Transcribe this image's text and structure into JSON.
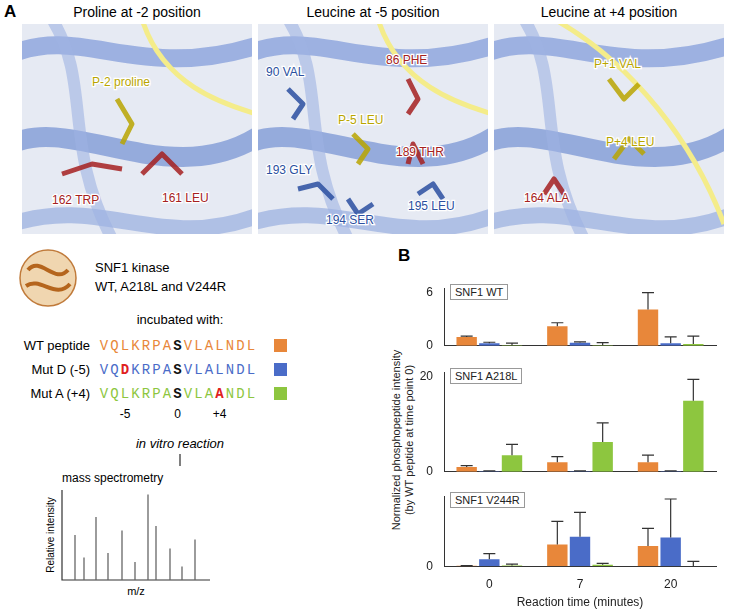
{
  "panel_a": {
    "label": "A",
    "structures": [
      {
        "title": "Proline at -2 position",
        "labels": [
          {
            "text": "P-2 proline",
            "color": "#b8a500"
          },
          {
            "text": "162 TRP",
            "color": "#a52020"
          },
          {
            "text": "161 LEU",
            "color": "#a52020"
          }
        ]
      },
      {
        "title": "Leucine at -5 position",
        "labels": [
          {
            "text": "90 VAL",
            "color": "#2a4fa0"
          },
          {
            "text": "86 PHE",
            "color": "#a52020"
          },
          {
            "text": "P-5 LEU",
            "color": "#b8a500"
          },
          {
            "text": "189 THR",
            "color": "#a52020"
          },
          {
            "text": "193 GLY",
            "color": "#2a4fa0"
          },
          {
            "text": "194 SER",
            "color": "#2a4fa0"
          },
          {
            "text": "195 LEU",
            "color": "#2a4fa0"
          }
        ]
      },
      {
        "title": "Leucine at +4 position",
        "labels": [
          {
            "text": "P+1 VAL",
            "color": "#b8a500"
          },
          {
            "text": "P+4 LEU",
            "color": "#b8a500"
          },
          {
            "text": "164 ALA",
            "color": "#a52020"
          }
        ]
      }
    ],
    "kinase": {
      "name": "SNF1 kinase",
      "variants": "WT, A218L and V244R"
    },
    "incubation": "incubated with:",
    "peptides": [
      {
        "sequence": "VQLKRPASVLALNDL",
        "phospho_site": 7
      },
      {
        "sequence": "VQDKRPASVLALNDL",
        "phospho_site": 7,
        "mutation": 2
      },
      {
        "sequence": "VQLKRPASVLAANDL",
        "phospho_site": 7,
        "mutation": 11
      }
    ],
    "positions": [
      {
        "label": "-5",
        "residue": 2
      },
      {
        "label": "0",
        "residue": 7
      },
      {
        "label": "+4",
        "residue": 11
      }
    ],
    "reaction": "in vitro reaction",
    "method": "mass spectrometry",
    "spectrum": {
      "ylabel": "Relative intensity",
      "xlabel": "m/z"
    }
  },
  "panel_b": {
    "label": "B",
    "ylabel": [
      "Normalized phosphopeptide intensity",
      "(by WT peptide at time point 0)"
    ]
  },
  "chart_data": [
    {
      "type": "bar",
      "title": "SNF1 WT",
      "categories": [
        0,
        7,
        20
      ],
      "series": [
        {
          "name": "WT peptide",
          "color": "#e8873a",
          "values": [
            1.0,
            2.2,
            4.1
          ],
          "errors": [
            0.1,
            0.4,
            1.9
          ]
        },
        {
          "name": "Mut D (-5)",
          "color": "#4a6cc8",
          "values": [
            0.3,
            0.35,
            0.3
          ],
          "errors": [
            0.1,
            0.1,
            0.7
          ]
        },
        {
          "name": "Mut A (+4)",
          "color": "#8dc63f",
          "values": [
            0.05,
            0.05,
            0.2
          ],
          "errors": [
            0.25,
            0.3,
            0.9
          ]
        }
      ],
      "ylim": [
        0,
        6.5
      ],
      "yticks": [
        0,
        6
      ],
      "grid": false,
      "tick_labels": "y"
    },
    {
      "type": "bar",
      "title": "SNF1 A218L",
      "categories": [
        0,
        7,
        20
      ],
      "series": [
        {
          "name": "WT peptide",
          "color": "#e8873a",
          "values": [
            1.0,
            2.0,
            2.0
          ],
          "errors": [
            0.3,
            1.2,
            1.5
          ]
        },
        {
          "name": "Mut D (-5)",
          "color": "#4a6cc8",
          "values": [
            0.1,
            0.1,
            0.1
          ],
          "errors": [
            0.1,
            0.1,
            0.1
          ]
        },
        {
          "name": "Mut A (+4)",
          "color": "#8dc63f",
          "values": [
            3.5,
            6.3,
            15.0
          ],
          "errors": [
            2.3,
            4.0,
            4.5
          ]
        }
      ],
      "ylim": [
        0,
        21
      ],
      "yticks": [
        0,
        20
      ],
      "grid": false,
      "tick_labels": "y"
    },
    {
      "type": "bar",
      "title": "SNF1 V244R",
      "categories": [
        0,
        7,
        20
      ],
      "series": [
        {
          "name": "WT peptide",
          "color": "#e8873a",
          "values": [
            0.5,
            31,
            29
          ],
          "errors": [
            0.5,
            33,
            25
          ]
        },
        {
          "name": "Mut D (-5)",
          "color": "#4a6cc8",
          "values": [
            10,
            42,
            41
          ],
          "errors": [
            8,
            35,
            55
          ]
        },
        {
          "name": "Mut A (+4)",
          "color": "#8dc63f",
          "values": [
            1,
            2,
            0
          ],
          "errors": [
            2,
            2,
            7
          ]
        }
      ],
      "ylim": [
        0,
        100
      ],
      "yticks": [
        0
      ],
      "grid": false,
      "tick_labels": true,
      "x_label": "Reaction time (minutes)"
    }
  ]
}
